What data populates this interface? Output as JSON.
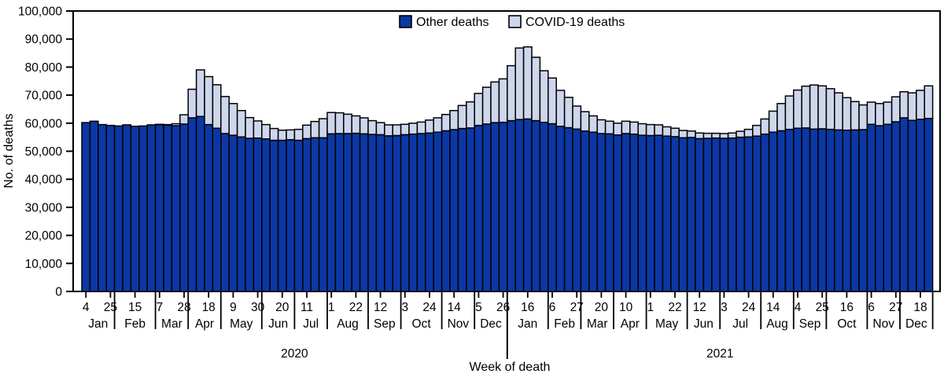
{
  "figure": {
    "y_axis_title": "No. of deaths",
    "x_axis_title": "Week of death"
  },
  "legend": {
    "items": [
      {
        "label": "Other deaths",
        "color": "#0B38A6"
      },
      {
        "label": "COVID-19 deaths",
        "color": "#CED6EC"
      }
    ]
  },
  "chart_data": {
    "type": "bar",
    "stacked": true,
    "title": "",
    "xlabel": "Week of death",
    "ylabel": "No. of deaths",
    "ylim": [
      0,
      100000
    ],
    "y_tick_step": 10000,
    "grid": false,
    "legend_position": "top-center-inside",
    "y_tick_labels": [
      "0",
      "10,000",
      "20,000",
      "30,000",
      "40,000",
      "50,000",
      "60,000",
      "70,000",
      "80,000",
      "90,000",
      "100,000"
    ],
    "week_tick_every": 3,
    "week_tick_labels": [
      "4",
      "25",
      "15",
      "7",
      "28",
      "18",
      "9",
      "30",
      "20",
      "11",
      "1",
      "22",
      "12",
      "3",
      "24",
      "14",
      "5",
      "26",
      "16",
      "6",
      "27",
      "20",
      "10",
      "1",
      "22",
      "12",
      "3",
      "24",
      "14",
      "4",
      "25",
      "16",
      "6",
      "27",
      "18"
    ],
    "months": [
      {
        "label": "Jan",
        "weeks": 4
      },
      {
        "label": "Feb",
        "weeks": 5
      },
      {
        "label": "Mar",
        "weeks": 4
      },
      {
        "label": "Apr",
        "weeks": 4
      },
      {
        "label": "May",
        "weeks": 5
      },
      {
        "label": "Jun",
        "weeks": 4
      },
      {
        "label": "Jul",
        "weeks": 4
      },
      {
        "label": "Aug",
        "weeks": 5
      },
      {
        "label": "Sep",
        "weeks": 4
      },
      {
        "label": "Oct",
        "weeks": 5
      },
      {
        "label": "Nov",
        "weeks": 4
      },
      {
        "label": "Dec",
        "weeks": 4
      },
      {
        "label": "Jan",
        "weeks": 5
      },
      {
        "label": "Feb",
        "weeks": 4
      },
      {
        "label": "Mar",
        "weeks": 4
      },
      {
        "label": "Apr",
        "weeks": 4
      },
      {
        "label": "May",
        "weeks": 5
      },
      {
        "label": "Jun",
        "weeks": 4
      },
      {
        "label": "Jul",
        "weeks": 5
      },
      {
        "label": "Aug",
        "weeks": 4
      },
      {
        "label": "Sep",
        "weeks": 4
      },
      {
        "label": "Oct",
        "weeks": 5
      },
      {
        "label": "Nov",
        "weeks": 4
      },
      {
        "label": "Dec",
        "weeks": 4
      }
    ],
    "years": [
      {
        "label": "2020",
        "weeks": 52
      },
      {
        "label": "2021",
        "weeks": 52
      }
    ],
    "series": [
      {
        "name": "Other deaths",
        "color": "#0B38A6",
        "values": [
          60200,
          60700,
          59500,
          59200,
          59000,
          59400,
          58900,
          59000,
          59400,
          59500,
          59300,
          59100,
          59700,
          61900,
          62400,
          59500,
          58200,
          56300,
          55700,
          55100,
          54600,
          54700,
          54400,
          53900,
          53900,
          54100,
          53900,
          54500,
          54800,
          54800,
          56200,
          56300,
          56300,
          56400,
          56200,
          56000,
          55900,
          55500,
          55600,
          55900,
          56100,
          56300,
          56500,
          56800,
          57300,
          57700,
          58100,
          58300,
          59200,
          59700,
          60200,
          60300,
          60900,
          61300,
          61500,
          60900,
          60300,
          59800,
          58900,
          58400,
          57900,
          57200,
          56800,
          56300,
          56200,
          55800,
          56300,
          56100,
          55700,
          55600,
          55700,
          55400,
          55200,
          54800,
          54900,
          54500,
          54600,
          54700,
          54600,
          54700,
          55000,
          55100,
          55400,
          56100,
          56800,
          57300,
          57800,
          58200,
          58300,
          57900,
          58000,
          57800,
          57600,
          57500,
          57600,
          57700,
          59600,
          59100,
          59600,
          60500,
          61900,
          61000,
          61400,
          61700
        ]
      },
      {
        "name": "COVID-19 deaths",
        "color": "#CED6EC",
        "values": [
          0,
          0,
          0,
          0,
          0,
          0,
          0,
          0,
          0,
          100,
          200,
          700,
          3300,
          10200,
          16600,
          17100,
          15500,
          13200,
          11300,
          9400,
          7400,
          6100,
          5100,
          4200,
          3600,
          3500,
          3900,
          4800,
          5800,
          6800,
          7600,
          7400,
          6900,
          6200,
          5700,
          4900,
          4300,
          3900,
          3800,
          3700,
          3900,
          4100,
          4600,
          5100,
          5800,
          6800,
          8200,
          9300,
          11400,
          13100,
          14500,
          15500,
          19600,
          25500,
          25700,
          22600,
          18400,
          16300,
          12800,
          10800,
          8200,
          6900,
          5800,
          4900,
          4500,
          4200,
          4400,
          4300,
          4100,
          3900,
          3700,
          3300,
          3000,
          2600,
          2300,
          2000,
          1800,
          1700,
          1700,
          1800,
          2100,
          2700,
          3800,
          5400,
          7500,
          9700,
          11900,
          13600,
          14900,
          15700,
          15300,
          14500,
          13200,
          11600,
          10100,
          8800,
          7900,
          7900,
          7900,
          8900,
          9300,
          9800,
          10300,
          11600
        ]
      }
    ]
  }
}
